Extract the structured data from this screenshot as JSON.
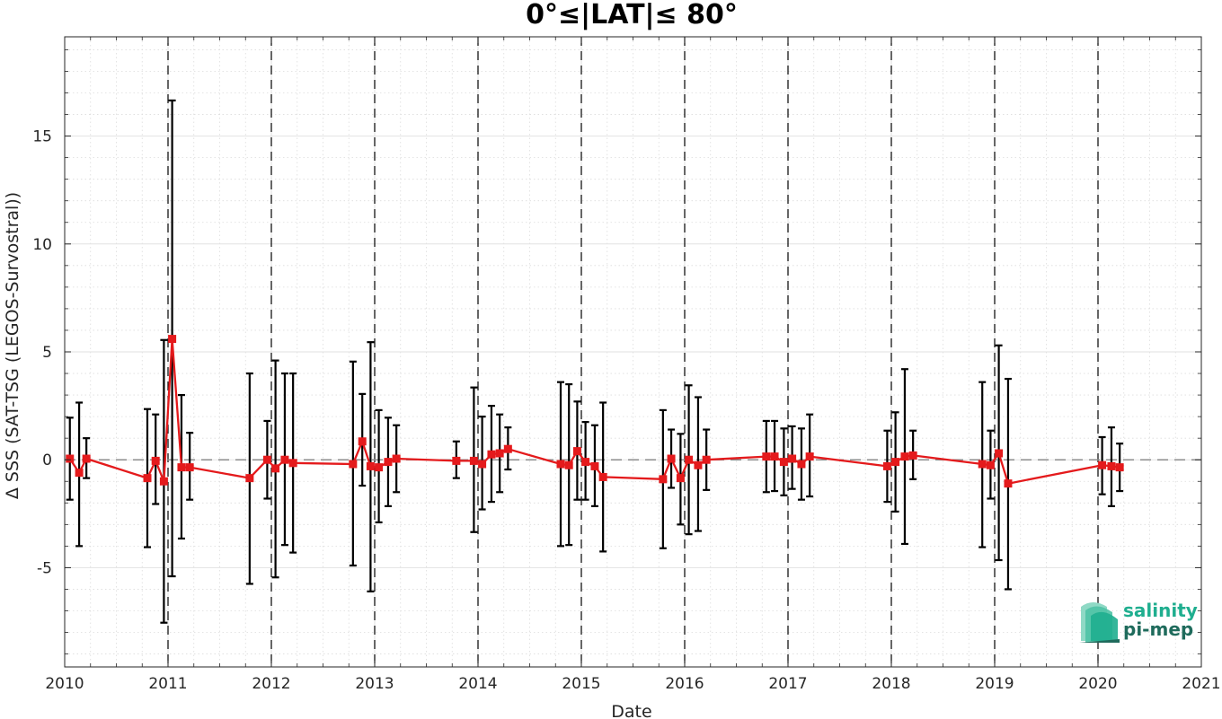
{
  "chart_data": {
    "type": "line",
    "title": "0°≤|LAT|≤ 80°",
    "xlabel": "Date",
    "ylabel": "Δ SSS (SAT-TSG (LEGOS-Survostral))",
    "xlim": [
      2010.0,
      2021.0
    ],
    "ylim": [
      -9.6,
      19.6
    ],
    "x_ticks": [
      2010,
      2011,
      2012,
      2013,
      2014,
      2015,
      2016,
      2017,
      2018,
      2019,
      2020,
      2021
    ],
    "x_tick_labels": [
      "2010",
      "2011",
      "2012",
      "2013",
      "2014",
      "2015",
      "2016",
      "2017",
      "2018",
      "2019",
      "2020",
      "2021"
    ],
    "y_ticks": [
      -5,
      0,
      5,
      10,
      15
    ],
    "y_tick_labels": [
      "-5",
      "0",
      "5",
      "10",
      "15"
    ],
    "grid": true,
    "minor_grid": true,
    "year_separators": [
      2011,
      2012,
      2013,
      2014,
      2015,
      2016,
      2017,
      2018,
      2019,
      2020
    ],
    "zero_reference_line": 0,
    "series": [
      {
        "color": "#e41a1c",
        "errorbar_color": "#000000",
        "points": [
          {
            "x": 2010.05,
            "y": 0.05,
            "lo": -1.85,
            "hi": 1.95
          },
          {
            "x": 2010.14,
            "y": -0.6,
            "lo": -4.0,
            "hi": 2.65
          },
          {
            "x": 2010.21,
            "y": 0.05,
            "lo": -0.85,
            "hi": 1.0
          },
          {
            "x": 2010.8,
            "y": -0.85,
            "lo": -4.05,
            "hi": 2.35
          },
          {
            "x": 2010.88,
            "y": -0.05,
            "lo": -2.05,
            "hi": 2.1
          },
          {
            "x": 2010.96,
            "y": -1.0,
            "lo": -7.55,
            "hi": 5.55
          },
          {
            "x": 2011.04,
            "y": 5.6,
            "lo": -5.4,
            "hi": 16.65
          },
          {
            "x": 2011.13,
            "y": -0.35,
            "lo": -3.65,
            "hi": 3.0
          },
          {
            "x": 2011.21,
            "y": -0.35,
            "lo": -1.85,
            "hi": 1.25
          },
          {
            "x": 2011.79,
            "y": -0.85,
            "lo": -5.75,
            "hi": 4.0
          },
          {
            "x": 2011.96,
            "y": 0.0,
            "lo": -1.8,
            "hi": 1.8
          },
          {
            "x": 2012.04,
            "y": -0.4,
            "lo": -5.45,
            "hi": 4.6
          },
          {
            "x": 2012.13,
            "y": 0.0,
            "lo": -3.95,
            "hi": 4.0
          },
          {
            "x": 2012.21,
            "y": -0.15,
            "lo": -4.3,
            "hi": 4.0
          },
          {
            "x": 2012.79,
            "y": -0.2,
            "lo": -4.9,
            "hi": 4.55
          },
          {
            "x": 2012.88,
            "y": 0.85,
            "lo": -1.2,
            "hi": 3.05
          },
          {
            "x": 2012.96,
            "y": -0.3,
            "lo": -6.1,
            "hi": 5.45
          },
          {
            "x": 2013.04,
            "y": -0.35,
            "lo": -2.9,
            "hi": 2.3
          },
          {
            "x": 2013.13,
            "y": -0.1,
            "lo": -2.15,
            "hi": 1.95
          },
          {
            "x": 2013.21,
            "y": 0.05,
            "lo": -1.5,
            "hi": 1.6
          },
          {
            "x": 2013.79,
            "y": -0.05,
            "lo": -0.85,
            "hi": 0.85
          },
          {
            "x": 2013.96,
            "y": -0.05,
            "lo": -3.35,
            "hi": 3.35
          },
          {
            "x": 2014.04,
            "y": -0.2,
            "lo": -2.3,
            "hi": 2.0
          },
          {
            "x": 2014.13,
            "y": 0.25,
            "lo": -1.95,
            "hi": 2.5
          },
          {
            "x": 2014.21,
            "y": 0.3,
            "lo": -1.5,
            "hi": 2.1
          },
          {
            "x": 2014.29,
            "y": 0.5,
            "lo": -0.45,
            "hi": 1.5
          },
          {
            "x": 2014.8,
            "y": -0.2,
            "lo": -4.0,
            "hi": 3.6
          },
          {
            "x": 2014.88,
            "y": -0.25,
            "lo": -3.95,
            "hi": 3.5
          },
          {
            "x": 2014.96,
            "y": 0.4,
            "lo": -1.85,
            "hi": 2.7
          },
          {
            "x": 2015.04,
            "y": -0.1,
            "lo": -1.85,
            "hi": 1.75
          },
          {
            "x": 2015.13,
            "y": -0.3,
            "lo": -2.15,
            "hi": 1.6
          },
          {
            "x": 2015.21,
            "y": -0.8,
            "lo": -4.25,
            "hi": 2.65
          },
          {
            "x": 2015.79,
            "y": -0.9,
            "lo": -4.1,
            "hi": 2.3
          },
          {
            "x": 2015.87,
            "y": 0.05,
            "lo": -1.3,
            "hi": 1.4
          },
          {
            "x": 2015.96,
            "y": -0.85,
            "lo": -3.0,
            "hi": 1.2
          },
          {
            "x": 2016.04,
            "y": 0.0,
            "lo": -3.45,
            "hi": 3.45
          },
          {
            "x": 2016.13,
            "y": -0.25,
            "lo": -3.3,
            "hi": 2.9
          },
          {
            "x": 2016.21,
            "y": 0.0,
            "lo": -1.4,
            "hi": 1.4
          },
          {
            "x": 2016.79,
            "y": 0.15,
            "lo": -1.5,
            "hi": 1.8
          },
          {
            "x": 2016.87,
            "y": 0.15,
            "lo": -1.45,
            "hi": 1.8
          },
          {
            "x": 2016.96,
            "y": -0.1,
            "lo": -1.65,
            "hi": 1.45
          },
          {
            "x": 2017.04,
            "y": 0.05,
            "lo": -1.35,
            "hi": 1.55
          },
          {
            "x": 2017.13,
            "y": -0.2,
            "lo": -1.85,
            "hi": 1.45
          },
          {
            "x": 2017.21,
            "y": 0.15,
            "lo": -1.7,
            "hi": 2.1
          },
          {
            "x": 2017.96,
            "y": -0.3,
            "lo": -1.95,
            "hi": 1.35
          },
          {
            "x": 2018.04,
            "y": -0.1,
            "lo": -2.4,
            "hi": 2.2
          },
          {
            "x": 2018.13,
            "y": 0.15,
            "lo": -3.9,
            "hi": 4.2
          },
          {
            "x": 2018.21,
            "y": 0.2,
            "lo": -0.9,
            "hi": 1.35
          },
          {
            "x": 2018.88,
            "y": -0.2,
            "lo": -4.05,
            "hi": 3.6
          },
          {
            "x": 2018.96,
            "y": -0.25,
            "lo": -1.8,
            "hi": 1.35
          },
          {
            "x": 2019.04,
            "y": 0.3,
            "lo": -4.65,
            "hi": 5.3
          },
          {
            "x": 2019.13,
            "y": -1.1,
            "lo": -6.0,
            "hi": 3.75
          },
          {
            "x": 2020.04,
            "y": -0.25,
            "lo": -1.6,
            "hi": 1.05
          },
          {
            "x": 2020.13,
            "y": -0.3,
            "lo": -2.15,
            "hi": 1.5
          },
          {
            "x": 2020.21,
            "y": -0.35,
            "lo": -1.45,
            "hi": 0.75
          }
        ]
      }
    ]
  },
  "logo": {
    "line1": "salinity",
    "line2": "pi-mep",
    "color_primary": "#1fae8f",
    "color_dark": "#1f6b5c"
  }
}
